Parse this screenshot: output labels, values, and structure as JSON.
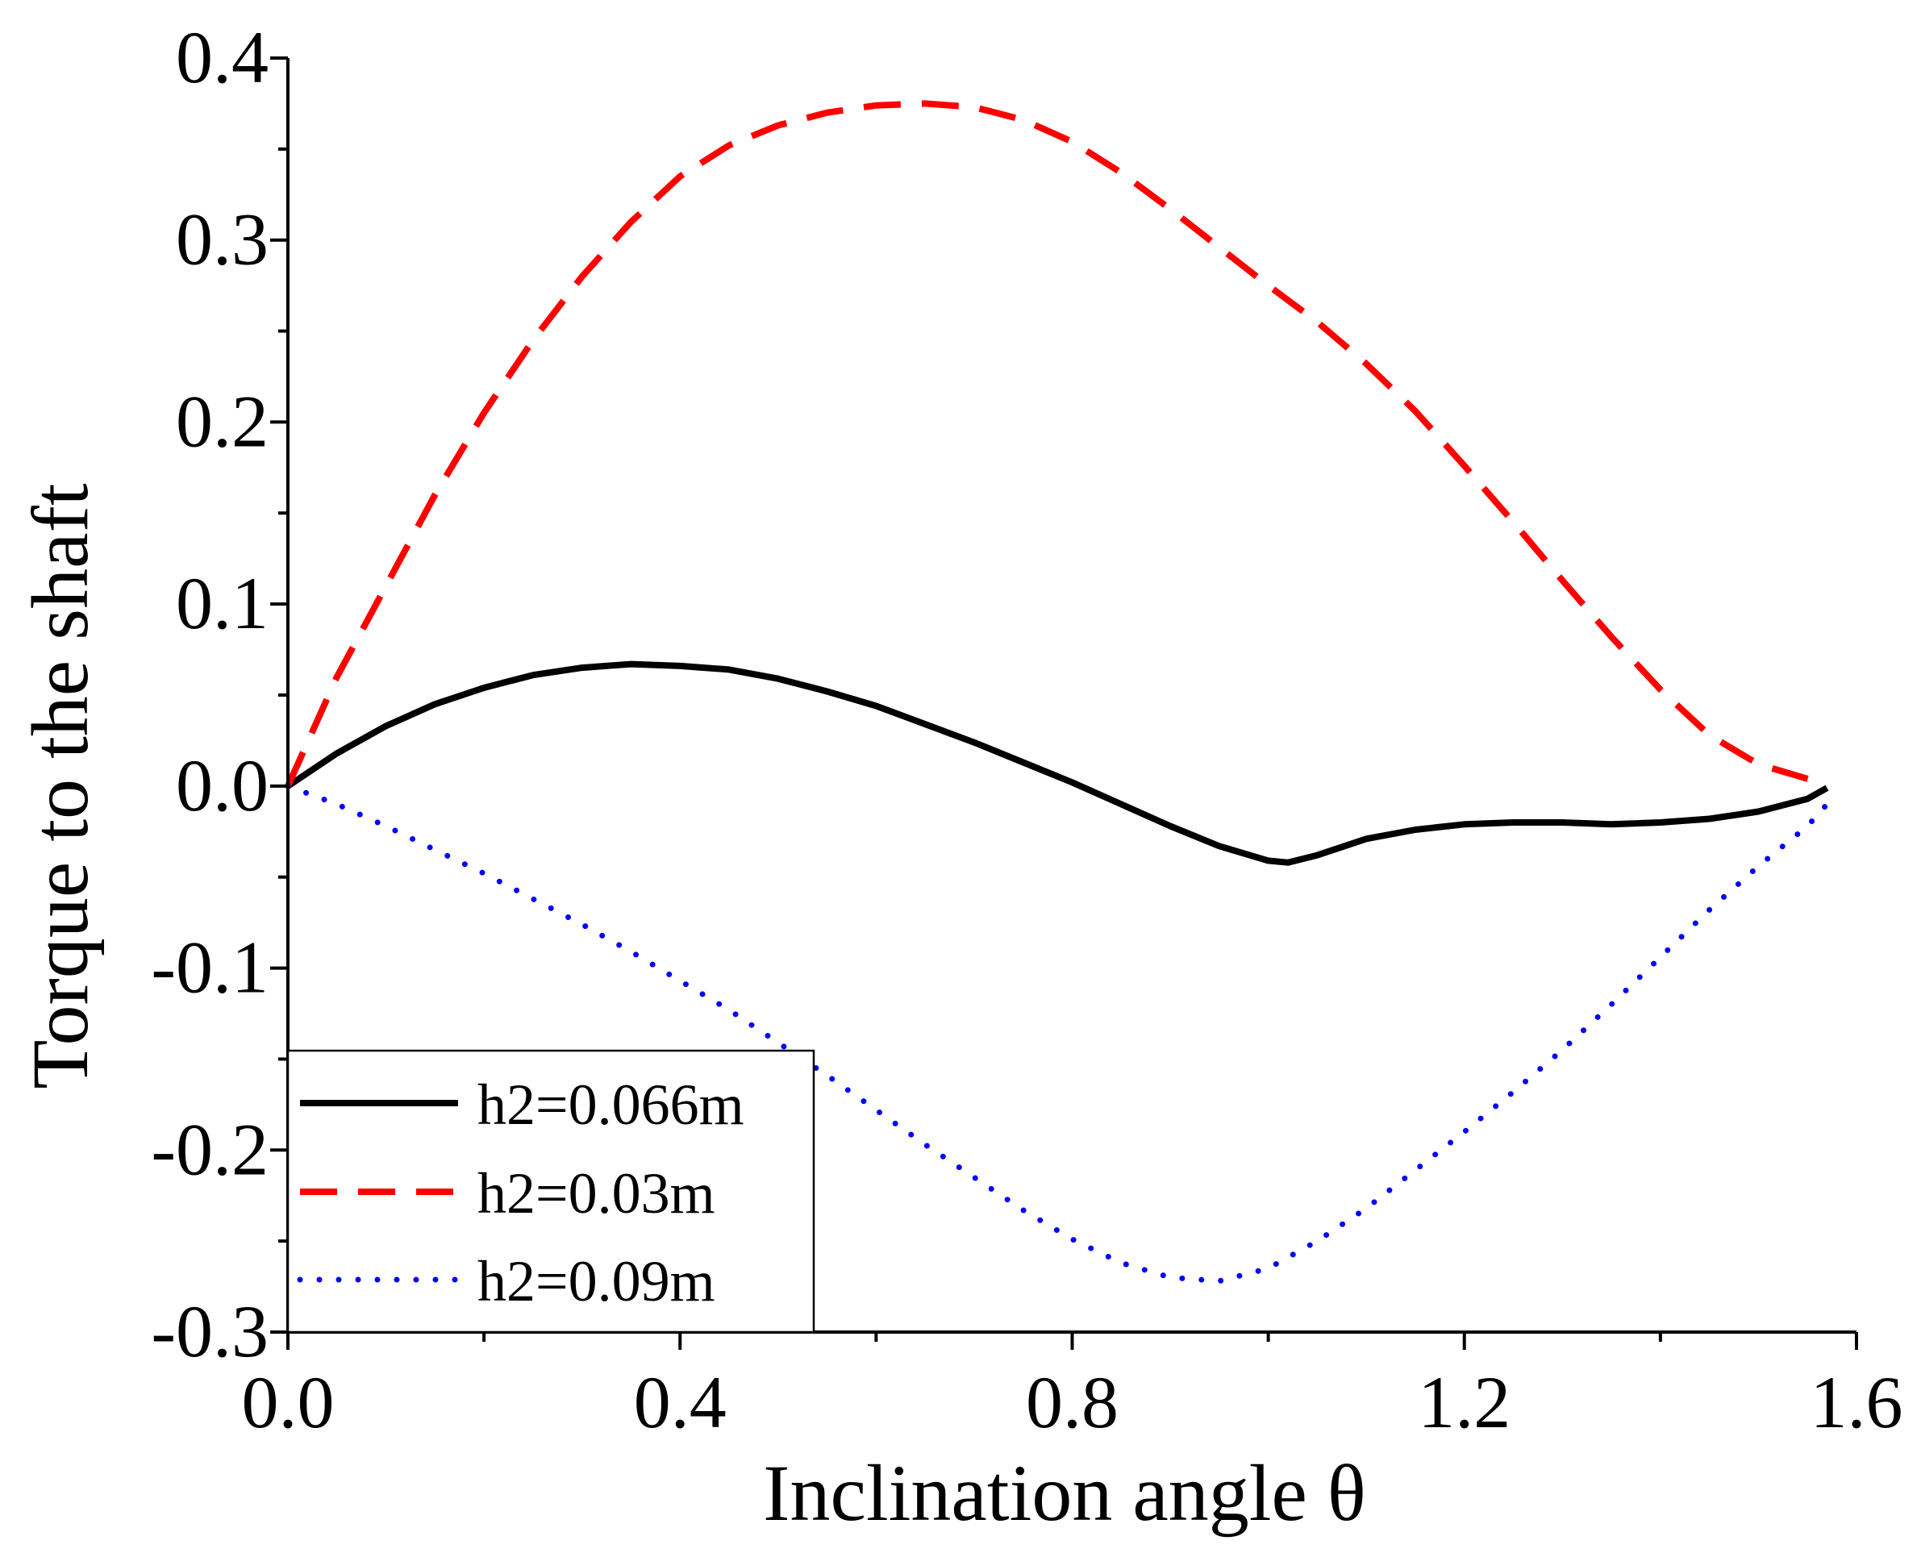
{
  "chart_data": {
    "type": "line",
    "xlabel": "Inclination angle θ",
    "ylabel": "Torque to the shaft",
    "xlim": [
      0.0,
      1.6
    ],
    "ylim": [
      -0.3,
      0.4
    ],
    "xticks": [
      0.0,
      0.4,
      0.8,
      1.2,
      1.6
    ],
    "xtick_labels": [
      "0.0",
      "0.4",
      "0.8",
      "1.2",
      "1.6"
    ],
    "yticks": [
      -0.3,
      -0.2,
      -0.1,
      0.0,
      0.1,
      0.2,
      0.3,
      0.4
    ],
    "ytick_labels": [
      "-0.3",
      "-0.2",
      "-0.1",
      "0.0",
      "0.1",
      "0.2",
      "0.3",
      "0.4"
    ],
    "grid": false,
    "legend_position": "bottom-left",
    "series": [
      {
        "name": "h2=0.066m",
        "color": "#000000",
        "style": "solid",
        "x": [
          0,
          0.05,
          0.1,
          0.15,
          0.2,
          0.25,
          0.3,
          0.35,
          0.4,
          0.45,
          0.5,
          0.55,
          0.6,
          0.65,
          0.7,
          0.75,
          0.8,
          0.85,
          0.9,
          0.95,
          1.0,
          1.02,
          1.05,
          1.1,
          1.15,
          1.2,
          1.25,
          1.3,
          1.35,
          1.4,
          1.45,
          1.5,
          1.55,
          1.57
        ],
        "y": [
          0,
          0.018,
          0.033,
          0.045,
          0.054,
          0.061,
          0.065,
          0.067,
          0.066,
          0.064,
          0.059,
          0.052,
          0.044,
          0.034,
          0.024,
          0.013,
          0.002,
          -0.01,
          -0.022,
          -0.033,
          -0.041,
          -0.042,
          -0.038,
          -0.029,
          -0.024,
          -0.021,
          -0.02,
          -0.02,
          -0.021,
          -0.02,
          -0.018,
          -0.014,
          -0.007,
          -0.001
        ]
      },
      {
        "name": "h2=0.03m",
        "color": "#ff0000",
        "style": "dashed",
        "x": [
          0,
          0.05,
          0.1,
          0.15,
          0.2,
          0.25,
          0.3,
          0.35,
          0.4,
          0.45,
          0.5,
          0.55,
          0.6,
          0.65,
          0.7,
          0.75,
          0.8,
          0.85,
          0.9,
          0.95,
          1.0,
          1.05,
          1.1,
          1.15,
          1.2,
          1.25,
          1.3,
          1.35,
          1.4,
          1.45,
          1.5,
          1.55,
          1.57
        ],
        "y": [
          0,
          0.06,
          0.11,
          0.16,
          0.205,
          0.245,
          0.28,
          0.31,
          0.335,
          0.352,
          0.363,
          0.37,
          0.374,
          0.375,
          0.373,
          0.366,
          0.354,
          0.337,
          0.317,
          0.296,
          0.275,
          0.255,
          0.232,
          0.206,
          0.176,
          0.145,
          0.113,
          0.082,
          0.053,
          0.028,
          0.012,
          0.004,
          0.001
        ]
      },
      {
        "name": "h2=0.09m",
        "color": "#0000ff",
        "style": "dotted",
        "x": [
          0,
          0.05,
          0.1,
          0.15,
          0.2,
          0.25,
          0.3,
          0.35,
          0.4,
          0.45,
          0.5,
          0.55,
          0.6,
          0.65,
          0.7,
          0.75,
          0.8,
          0.85,
          0.9,
          0.95,
          1.0,
          1.05,
          1.1,
          1.15,
          1.2,
          1.25,
          1.3,
          1.35,
          1.4,
          1.45,
          1.5,
          1.55,
          1.57
        ],
        "y": [
          0,
          -0.01,
          -0.022,
          -0.035,
          -0.048,
          -0.062,
          -0.076,
          -0.091,
          -0.107,
          -0.123,
          -0.141,
          -0.159,
          -0.178,
          -0.197,
          -0.215,
          -0.233,
          -0.249,
          -0.262,
          -0.27,
          -0.272,
          -0.265,
          -0.25,
          -0.232,
          -0.211,
          -0.19,
          -0.168,
          -0.145,
          -0.12,
          -0.094,
          -0.068,
          -0.044,
          -0.022,
          -0.01
        ]
      }
    ]
  }
}
